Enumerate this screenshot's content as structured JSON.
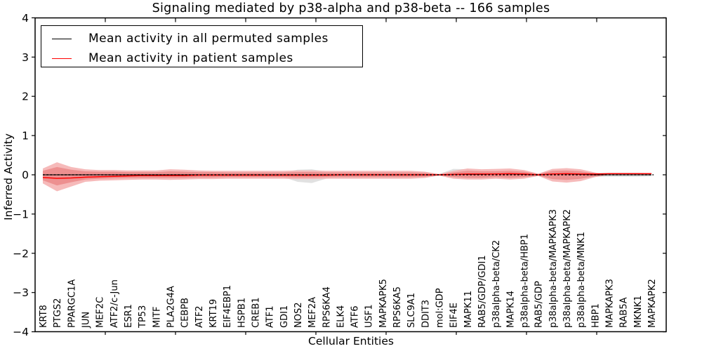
{
  "chart_data": {
    "type": "line",
    "title": "Signaling mediated by p38-alpha and p38-beta -- 166 samples",
    "xlabel": "Cellular Entities",
    "ylabel": "Inferred Activity",
    "ylim": [
      -4,
      4
    ],
    "y_ticks": [
      "4",
      "3",
      "2",
      "1",
      "0",
      "−1",
      "−2",
      "−3",
      "−4"
    ],
    "grid": false,
    "legend_position": "upper left",
    "legend": [
      {
        "label": "Mean activity in all permuted samples",
        "color": "#000000"
      },
      {
        "label": "Mean activity in patient samples",
        "color": "#ff0000"
      }
    ],
    "categories": [
      "KRT8",
      "PTGS2",
      "PPARGC1A",
      "JUN",
      "MEF2C",
      "ATF2/c-Jun",
      "ESR1",
      "TP53",
      "MITF",
      "PLA2G4A",
      "CEBPB",
      "ATF2",
      "KRT19",
      "EIF4EBP1",
      "HSPB1",
      "CREB1",
      "ATF1",
      "GDI1",
      "NOS2",
      "MEF2A",
      "RPS6KA4",
      "ELK4",
      "ATF6",
      "USF1",
      "MAPKAPK5",
      "RPS6KA5",
      "SLC9A1",
      "DDIT3",
      "mol:GDP",
      "EIF4E",
      "MAPK11",
      "RAB5/GDP/GDI1",
      "p38alpha-beta/CK2",
      "MAPK14",
      "p38alpha-beta/HBP1",
      "RAB5/GDP",
      "p38alpha-beta/MAPKAPK3",
      "p38alpha-beta/MAPKAPK2",
      "p38alpha-beta/MNK1",
      "HBP1",
      "MAPKAPK3",
      "RAB5A",
      "MKNK1",
      "MAPKAPK2"
    ],
    "series": [
      {
        "name": "Mean activity in all permuted samples",
        "color": "#000000",
        "style": "solid",
        "values": [
          0,
          0,
          0,
          0,
          0,
          0,
          0,
          0,
          0,
          0,
          0,
          0,
          0,
          0,
          0,
          0,
          0,
          0,
          0,
          0,
          0,
          0,
          0,
          0,
          0,
          0,
          0,
          0,
          0,
          0.01,
          0.01,
          0.01,
          0.02,
          0.02,
          0.01,
          0,
          0.02,
          0.02,
          0.01,
          0,
          0,
          0,
          0,
          0
        ]
      },
      {
        "name": "Mean activity in patient samples",
        "color": "#ff0000",
        "style": "solid",
        "values": [
          -0.07,
          -0.09,
          -0.08,
          -0.06,
          -0.05,
          -0.04,
          -0.03,
          -0.02,
          -0.02,
          -0.02,
          -0.02,
          -0.01,
          -0.01,
          -0.01,
          -0.01,
          -0.01,
          -0.01,
          -0.01,
          -0.01,
          -0.01,
          -0.01,
          0,
          0,
          0,
          0,
          0,
          0,
          0,
          0,
          0.01,
          0.02,
          0.02,
          0.02,
          0.03,
          0.02,
          0,
          0.02,
          0.03,
          0.02,
          0.02,
          0.03,
          0.03,
          0.03,
          0.03
        ]
      }
    ],
    "zero_line": {
      "y": 0,
      "style": "dashed",
      "color": "#000000"
    },
    "bands": [
      {
        "name": "permuted-samples-spread",
        "color": "#dedede",
        "top": [
          0.05,
          0.06,
          0.06,
          0.05,
          0.05,
          0.05,
          0.05,
          0.05,
          0.05,
          0.05,
          0.05,
          0.05,
          0.05,
          0.05,
          0.05,
          0.05,
          0.05,
          0.06,
          0.13,
          0.14,
          0.08,
          0.05,
          0.05,
          0.05,
          0.05,
          0.05,
          0.05,
          0.05,
          0.02,
          0.15,
          0.14,
          0.08,
          0.06,
          0.06,
          0.05,
          0.02,
          0.06,
          0.06,
          0.06,
          0.05,
          0.05,
          0.05,
          0.05,
          0.04
        ],
        "bottom": [
          -0.05,
          -0.06,
          -0.06,
          -0.05,
          -0.05,
          -0.05,
          -0.05,
          -0.05,
          -0.05,
          -0.05,
          -0.05,
          -0.05,
          -0.05,
          -0.05,
          -0.05,
          -0.05,
          -0.05,
          -0.06,
          -0.18,
          -0.21,
          -0.1,
          -0.05,
          -0.05,
          -0.05,
          -0.05,
          -0.05,
          -0.05,
          -0.05,
          -0.02,
          -0.06,
          -0.08,
          -0.06,
          -0.05,
          -0.05,
          -0.05,
          -0.02,
          -0.06,
          -0.06,
          -0.06,
          -0.05,
          -0.05,
          -0.05,
          -0.05,
          -0.04
        ]
      },
      {
        "name": "patient-samples-outer",
        "color": "#f5b3b3",
        "top": [
          0.16,
          0.32,
          0.2,
          0.14,
          0.12,
          0.12,
          0.11,
          0.11,
          0.11,
          0.14,
          0.13,
          0.11,
          0.1,
          0.1,
          0.1,
          0.1,
          0.1,
          0.1,
          0.11,
          0.11,
          0.1,
          0.1,
          0.1,
          0.1,
          0.1,
          0.1,
          0.1,
          0.08,
          0.02,
          0.1,
          0.16,
          0.14,
          0.15,
          0.16,
          0.12,
          0.03,
          0.15,
          0.17,
          0.14,
          0.06,
          0,
          0,
          0,
          0
        ],
        "bottom": [
          -0.22,
          -0.42,
          -0.3,
          -0.18,
          -0.15,
          -0.14,
          -0.13,
          -0.12,
          -0.12,
          -0.13,
          -0.12,
          -0.11,
          -0.11,
          -0.1,
          -0.1,
          -0.1,
          -0.1,
          -0.1,
          -0.11,
          -0.11,
          -0.1,
          -0.1,
          -0.1,
          -0.1,
          -0.1,
          -0.1,
          -0.1,
          -0.08,
          -0.02,
          -0.1,
          -0.12,
          -0.12,
          -0.1,
          -0.12,
          -0.1,
          -0.03,
          -0.17,
          -0.2,
          -0.16,
          -0.06,
          0,
          0,
          0,
          0
        ]
      },
      {
        "name": "patient-samples-inner",
        "color": "#ec8c8c",
        "top": [
          0.1,
          0.2,
          0.13,
          0.09,
          0.08,
          0.08,
          0.07,
          0.07,
          0.07,
          0.09,
          0.08,
          0.07,
          0.07,
          0.06,
          0.06,
          0.06,
          0.06,
          0.06,
          0.07,
          0.07,
          0.06,
          0.06,
          0.06,
          0.06,
          0.06,
          0.06,
          0.06,
          0.05,
          0.01,
          0.06,
          0.1,
          0.09,
          0.09,
          0.1,
          0.08,
          0.02,
          0.1,
          0.11,
          0.09,
          0.04,
          0,
          0,
          0,
          0
        ],
        "bottom": [
          -0.14,
          -0.27,
          -0.19,
          -0.12,
          -0.1,
          -0.09,
          -0.08,
          -0.08,
          -0.08,
          -0.08,
          -0.08,
          -0.07,
          -0.07,
          -0.06,
          -0.06,
          -0.06,
          -0.06,
          -0.06,
          -0.07,
          -0.07,
          -0.06,
          -0.06,
          -0.06,
          -0.06,
          -0.06,
          -0.06,
          -0.06,
          -0.05,
          -0.01,
          -0.06,
          -0.08,
          -0.08,
          -0.06,
          -0.08,
          -0.06,
          -0.02,
          -0.11,
          -0.13,
          -0.1,
          -0.04,
          0,
          0,
          0,
          0
        ]
      }
    ]
  }
}
